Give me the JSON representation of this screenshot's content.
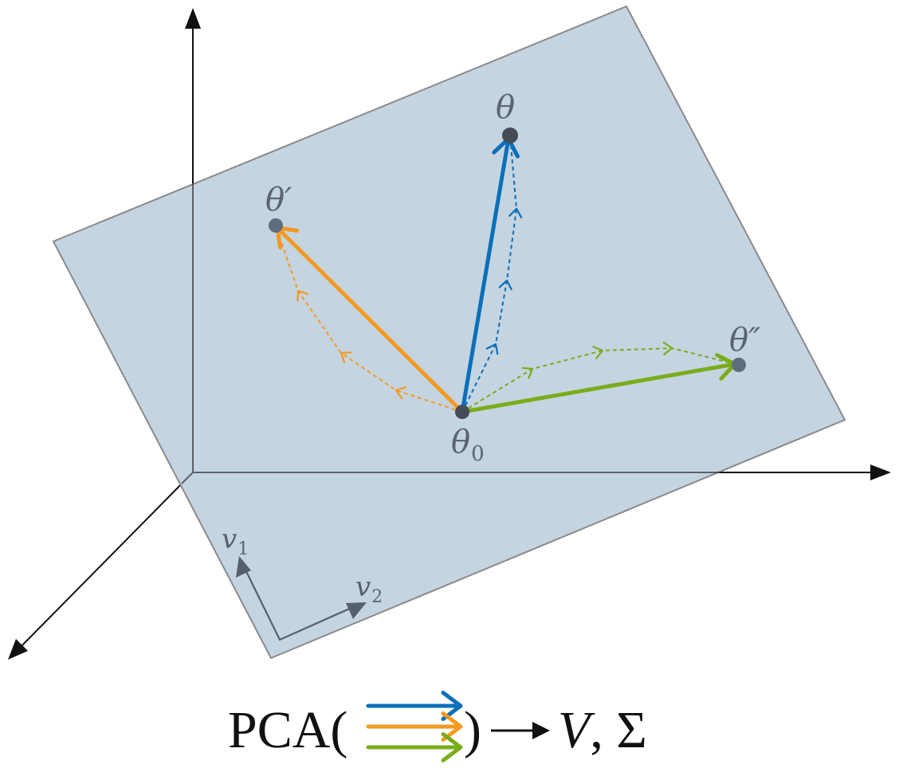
{
  "colors": {
    "plane_fill": "#c2d2df",
    "plane_stroke": "#8a8a8a",
    "axis": "#111111",
    "point": "#5d6d7d",
    "point_dark": "#444c55",
    "blue": "#0b6fba",
    "orange": "#f39a22",
    "green": "#7aac1a",
    "basis": "#56606c"
  },
  "labels": {
    "theta": "θ",
    "theta_prime": "θ′",
    "theta_double_prime": "θ″",
    "theta0_main": "θ",
    "theta0_sub": "0",
    "v1_main": "v",
    "v1_sub": "1",
    "v2_main": "v",
    "v2_sub": "2"
  },
  "formula": {
    "prefix": "PCA(",
    "suffix": ")",
    "result_v": "V",
    "result_rest": ", Σ"
  }
}
